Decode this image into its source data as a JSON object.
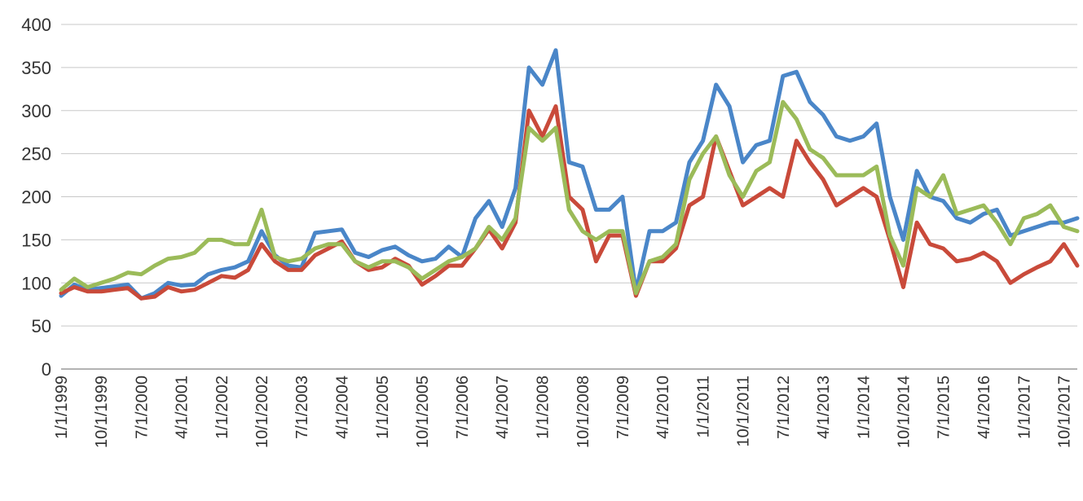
{
  "chart_data": {
    "type": "line",
    "title": "",
    "xlabel": "",
    "ylabel": "",
    "ylim": [
      0,
      400
    ],
    "yticks": [
      0,
      50,
      100,
      150,
      200,
      250,
      300,
      350,
      400
    ],
    "xlim": [
      "1999-01-01",
      "2018-01-01"
    ],
    "x_tick_labels": [
      "1/1/1999",
      "10/1/1999",
      "7/1/2000",
      "4/1/2001",
      "1/1/2002",
      "10/1/2002",
      "7/1/2003",
      "4/1/2004",
      "1/1/2005",
      "10/1/2005",
      "7/1/2006",
      "4/1/2007",
      "1/1/2008",
      "10/1/2008",
      "7/1/2009",
      "4/1/2010",
      "1/1/2011",
      "10/1/2011",
      "7/1/2012",
      "4/1/2013",
      "1/1/2014",
      "10/1/2014",
      "7/1/2015",
      "4/1/2016",
      "1/1/2017",
      "10/1/2017"
    ],
    "grid": "horizontal",
    "legend": "none",
    "x": [
      "1999-01-01",
      "1999-04-01",
      "1999-07-01",
      "1999-10-01",
      "2000-01-01",
      "2000-04-01",
      "2000-07-01",
      "2000-10-01",
      "2001-01-01",
      "2001-04-01",
      "2001-07-01",
      "2001-10-01",
      "2002-01-01",
      "2002-04-01",
      "2002-07-01",
      "2002-10-01",
      "2003-01-01",
      "2003-04-01",
      "2003-07-01",
      "2003-10-01",
      "2004-01-01",
      "2004-04-01",
      "2004-07-01",
      "2004-10-01",
      "2005-01-01",
      "2005-04-01",
      "2005-07-01",
      "2005-10-01",
      "2006-01-01",
      "2006-04-01",
      "2006-07-01",
      "2006-10-01",
      "2007-01-01",
      "2007-04-01",
      "2007-07-01",
      "2007-10-01",
      "2008-01-01",
      "2008-04-01",
      "2008-07-01",
      "2008-10-01",
      "2009-01-01",
      "2009-04-01",
      "2009-07-01",
      "2009-10-01",
      "2010-01-01",
      "2010-04-01",
      "2010-07-01",
      "2010-10-01",
      "2011-01-01",
      "2011-04-01",
      "2011-07-01",
      "2011-10-01",
      "2012-01-01",
      "2012-04-01",
      "2012-07-01",
      "2012-10-01",
      "2013-01-01",
      "2013-04-01",
      "2013-07-01",
      "2013-10-01",
      "2014-01-01",
      "2014-04-01",
      "2014-07-01",
      "2014-10-01",
      "2015-01-01",
      "2015-04-01",
      "2015-07-01",
      "2015-10-01",
      "2016-01-01",
      "2016-04-01",
      "2016-07-01",
      "2016-10-01",
      "2017-01-01",
      "2017-04-01",
      "2017-07-01",
      "2017-10-01",
      "2018-01-01"
    ],
    "series": [
      {
        "color": "#4a86c8",
        "values": [
          85,
          98,
          92,
          94,
          96,
          98,
          82,
          88,
          100,
          97,
          98,
          110,
          115,
          118,
          125,
          160,
          132,
          120,
          118,
          158,
          160,
          162,
          135,
          130,
          138,
          142,
          132,
          125,
          128,
          142,
          130,
          175,
          195,
          165,
          210,
          350,
          330,
          370,
          240,
          235,
          185,
          185,
          200,
          90,
          160,
          160,
          170,
          240,
          265,
          330,
          305,
          240,
          260,
          265,
          340,
          345,
          310,
          295,
          270,
          265,
          270,
          285,
          200,
          150,
          230,
          200,
          195,
          175,
          170,
          180,
          185,
          155,
          160,
          165,
          170,
          170,
          175
        ]
      },
      {
        "color": "#c94a3a",
        "values": [
          88,
          95,
          90,
          90,
          92,
          94,
          82,
          84,
          95,
          90,
          92,
          100,
          108,
          106,
          115,
          145,
          125,
          115,
          115,
          132,
          140,
          148,
          125,
          115,
          118,
          128,
          120,
          98,
          108,
          120,
          120,
          140,
          162,
          140,
          170,
          300,
          270,
          305,
          200,
          185,
          125,
          155,
          155,
          85,
          125,
          125,
          140,
          190,
          200,
          270,
          230,
          190,
          200,
          210,
          200,
          265,
          240,
          220,
          190,
          200,
          210,
          200,
          150,
          95,
          170,
          145,
          140,
          125,
          128,
          135,
          125,
          100,
          110,
          118,
          125,
          145,
          120
        ]
      },
      {
        "color": "#9bbb59",
        "values": [
          92,
          105,
          95,
          100,
          105,
          112,
          110,
          120,
          128,
          130,
          135,
          150,
          150,
          145,
          145,
          185,
          130,
          125,
          128,
          140,
          145,
          145,
          125,
          118,
          125,
          125,
          118,
          105,
          115,
          125,
          130,
          140,
          165,
          150,
          175,
          280,
          265,
          280,
          185,
          160,
          150,
          160,
          160,
          88,
          125,
          130,
          145,
          220,
          250,
          270,
          225,
          200,
          230,
          240,
          310,
          290,
          255,
          245,
          225,
          225,
          225,
          235,
          155,
          120,
          210,
          200,
          225,
          180,
          185,
          190,
          170,
          145,
          175,
          180,
          190,
          165,
          160
        ]
      }
    ]
  }
}
